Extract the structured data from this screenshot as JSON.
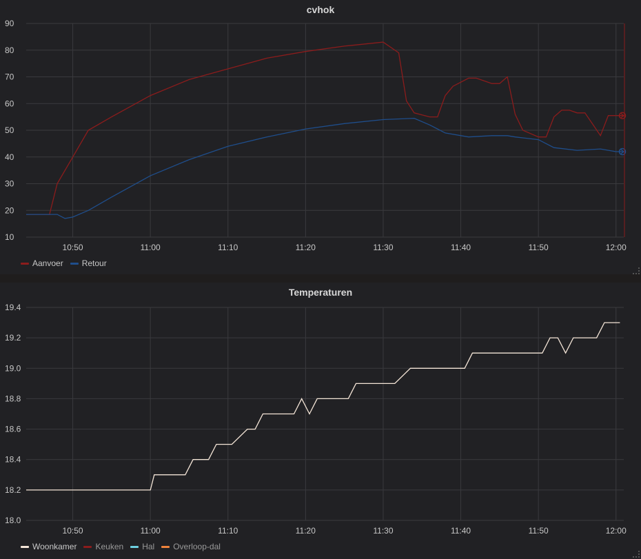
{
  "chart_data": [
    {
      "type": "line",
      "title": "cvhok",
      "x_ticks": [
        "10:50",
        "11:00",
        "11:10",
        "11:20",
        "11:30",
        "11:40",
        "11:50",
        "12:00"
      ],
      "x_range": [
        "10:44",
        "12:01"
      ],
      "ylim": [
        10,
        90
      ],
      "y_ticks": [
        "90",
        "80",
        "70",
        "60",
        "50",
        "40",
        "30",
        "20",
        "10"
      ],
      "grid": true,
      "legend_position": "bottom-left",
      "series": [
        {
          "name": "Aanvoer",
          "color": "#8c1c1c",
          "points": [
            [
              "10:44",
              18.5
            ],
            [
              "10:47",
              18.5
            ],
            [
              "10:48",
              30
            ],
            [
              "10:50",
              40
            ],
            [
              "10:52",
              50
            ],
            [
              "10:55",
              55
            ],
            [
              "11:00",
              63
            ],
            [
              "11:05",
              69
            ],
            [
              "11:10",
              73
            ],
            [
              "11:15",
              77
            ],
            [
              "11:20",
              79.5
            ],
            [
              "11:25",
              81.5
            ],
            [
              "11:30",
              83
            ],
            [
              "11:32",
              79
            ],
            [
              "11:33",
              61
            ],
            [
              "11:34",
              56.5
            ],
            [
              "11:36",
              55
            ],
            [
              "11:37",
              55
            ],
            [
              "11:38",
              63
            ],
            [
              "11:39",
              66.5
            ],
            [
              "11:41",
              69.5
            ],
            [
              "11:42",
              69.5
            ],
            [
              "11:44",
              67.5
            ],
            [
              "11:45",
              67.5
            ],
            [
              "11:46",
              70
            ],
            [
              "11:47",
              56
            ],
            [
              "11:48",
              50
            ],
            [
              "11:50",
              47.5
            ],
            [
              "11:51",
              47.5
            ],
            [
              "11:52",
              55
            ],
            [
              "11:53",
              57.5
            ],
            [
              "11:54",
              57.5
            ],
            [
              "11:55",
              56.5
            ],
            [
              "11:56",
              56.5
            ],
            [
              "11:58",
              48
            ],
            [
              "11:59",
              55.5
            ],
            [
              "12:01",
              55.5
            ]
          ]
        },
        {
          "name": "Retour",
          "color": "#1f4e8c",
          "points": [
            [
              "10:44",
              18.5
            ],
            [
              "10:47",
              18.5
            ],
            [
              "10:48",
              18.5
            ],
            [
              "10:49",
              17
            ],
            [
              "10:50",
              17.5
            ],
            [
              "10:52",
              20
            ],
            [
              "10:55",
              25
            ],
            [
              "11:00",
              33
            ],
            [
              "11:05",
              39
            ],
            [
              "11:10",
              44
            ],
            [
              "11:15",
              47.5
            ],
            [
              "11:20",
              50.5
            ],
            [
              "11:25",
              52.5
            ],
            [
              "11:30",
              54
            ],
            [
              "11:34",
              54.5
            ],
            [
              "11:36",
              52
            ],
            [
              "11:38",
              49
            ],
            [
              "11:41",
              47.5
            ],
            [
              "11:44",
              48
            ],
            [
              "11:46",
              48
            ],
            [
              "11:47",
              47.5
            ],
            [
              "11:50",
              46.5
            ],
            [
              "11:52",
              43.5
            ],
            [
              "11:55",
              42.5
            ],
            [
              "11:58",
              43
            ],
            [
              "12:00",
              42
            ],
            [
              "12:01",
              42
            ]
          ]
        }
      ]
    },
    {
      "type": "line",
      "title": "Temperaturen",
      "x_ticks": [
        "10:50",
        "11:00",
        "11:10",
        "11:20",
        "11:30",
        "11:40",
        "11:50",
        "12:00"
      ],
      "x_range": [
        "10:44",
        "12:01"
      ],
      "ylim": [
        18.0,
        19.4
      ],
      "y_ticks": [
        "19.4",
        "19.2",
        "19.0",
        "18.8",
        "18.6",
        "18.4",
        "18.2",
        "18.0"
      ],
      "grid": true,
      "legend_position": "bottom-left",
      "series": [
        {
          "name": "Woonkamer",
          "color": "#f5e6d8",
          "points": [
            [
              "10:44",
              18.2
            ],
            [
              "11:00",
              18.2
            ],
            [
              "11:00.5",
              18.3
            ],
            [
              "11:04.5",
              18.3
            ],
            [
              "11:05.5",
              18.4
            ],
            [
              "11:07.5",
              18.4
            ],
            [
              "11:08.5",
              18.5
            ],
            [
              "11:10.5",
              18.5
            ],
            [
              "11:12.5",
              18.6
            ],
            [
              "11:13.5",
              18.6
            ],
            [
              "11:14.5",
              18.7
            ],
            [
              "11:18.5",
              18.7
            ],
            [
              "11:19.5",
              18.8
            ],
            [
              "11:20.5",
              18.7
            ],
            [
              "11:21.5",
              18.8
            ],
            [
              "11:25.5",
              18.8
            ],
            [
              "11:26.5",
              18.9
            ],
            [
              "11:31.5",
              18.9
            ],
            [
              "11:33.5",
              19.0
            ],
            [
              "11:40.5",
              19.0
            ],
            [
              "11:41.5",
              19.1
            ],
            [
              "11:50.5",
              19.1
            ],
            [
              "11:51.5",
              19.2
            ],
            [
              "11:52.5",
              19.2
            ],
            [
              "11:53.5",
              19.1
            ],
            [
              "11:54.5",
              19.2
            ],
            [
              "11:57.5",
              19.2
            ],
            [
              "11:58.5",
              19.3
            ],
            [
              "12:00.5",
              19.3
            ]
          ]
        },
        {
          "name": "Keuken",
          "color": "#8c1c1c",
          "points": []
        },
        {
          "name": "Hal",
          "color": "#6ed0e0",
          "points": []
        },
        {
          "name": "Overloop-dal",
          "color": "#ef843c",
          "points": []
        }
      ]
    }
  ]
}
